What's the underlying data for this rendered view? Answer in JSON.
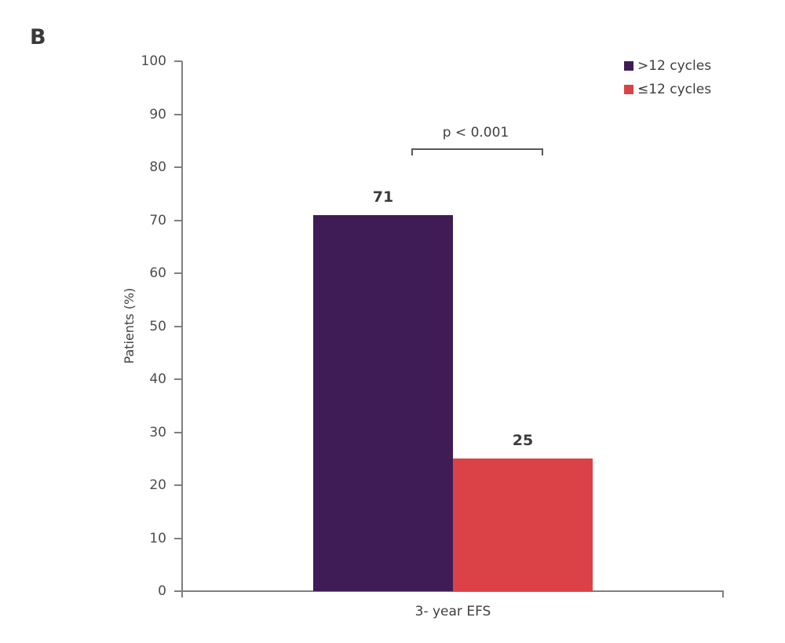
{
  "panel_label": "B",
  "chart_data": {
    "type": "bar",
    "title": "",
    "categories": [
      "3- year EFS"
    ],
    "series": [
      {
        "name": ">12 cycles",
        "values": [
          71
        ],
        "color": "#3F1C55"
      },
      {
        "name": "≤12 cycles",
        "values": [
          25
        ],
        "color": "#DB4247"
      }
    ],
    "xlabel": "3- year EFS",
    "ylabel": "Patients (%)",
    "ylim": [
      0,
      100
    ],
    "yticks": [
      0,
      10,
      20,
      30,
      40,
      50,
      60,
      70,
      80,
      90,
      100
    ],
    "grid": false,
    "legend_position": "top-right",
    "value_labels": [
      "71",
      "25"
    ],
    "annotations": [
      {
        "type": "significance-bracket",
        "text": "p < 0.001",
        "between": [
          ">12 cycles",
          "≤12 cycles"
        ]
      }
    ]
  }
}
